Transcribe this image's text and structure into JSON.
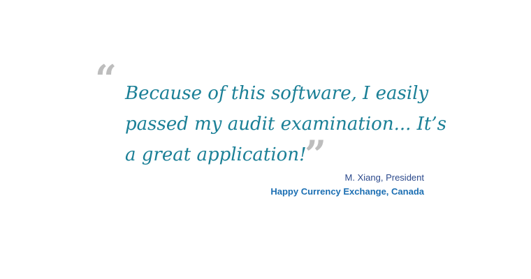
{
  "testimonial": {
    "open_quote": "“",
    "close_quote": "”",
    "lines": [
      "Because of this software, I easily",
      "passed my audit examination... It’s",
      "a great application!"
    ],
    "author": "M. Xiang, President",
    "company": "Happy Currency Exchange, Canada"
  },
  "colors": {
    "quote_text": "#1a7f96",
    "quote_marks": "#bdbdbd",
    "author": "#2c4a8c",
    "company": "#1c6fb3"
  }
}
